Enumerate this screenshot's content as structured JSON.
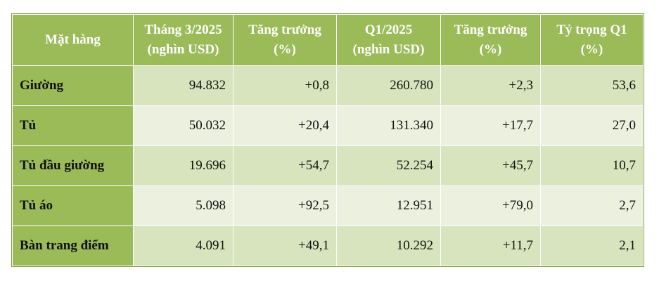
{
  "table": {
    "header": [
      "Mặt hàng",
      "Tháng 3/2025\n(nghìn USD)",
      "Tăng trưởng\n(%)",
      "Q1/2025\n(nghìn USD)",
      "Tăng trưởng\n(%)",
      "Tỷ trọng Q1\n(%)"
    ],
    "rows": [
      [
        "Giường",
        "94.832",
        "+0,8",
        "260.780",
        "+2,3",
        "53,6"
      ],
      [
        "Tủ",
        "50.032",
        "+20,4",
        "131.340",
        "+17,7",
        "27,0"
      ],
      [
        "Tủ đầu giường",
        "19.696",
        "+54,7",
        "52.254",
        "+45,7",
        "10,7"
      ],
      [
        "Tủ áo",
        "5.098",
        "+92,5",
        "12.951",
        "+79,0",
        "2,7"
      ],
      [
        "Bàn trang điểm",
        "4.091",
        "+49,1",
        "10.292",
        "+11,7",
        "2,1"
      ]
    ]
  }
}
